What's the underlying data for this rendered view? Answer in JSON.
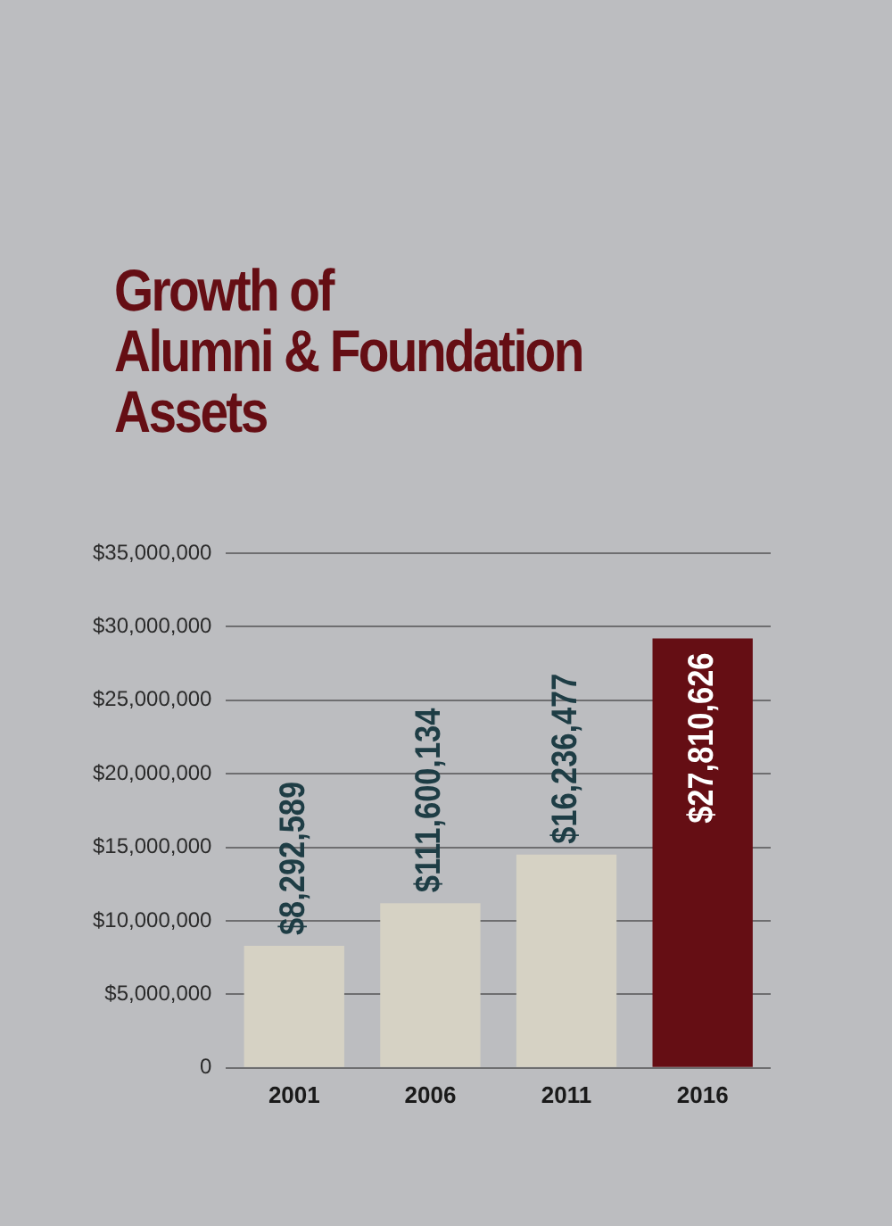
{
  "chart_data": {
    "type": "bar",
    "title": "Growth of\nAlumni & Foundation\nAssets",
    "categories": [
      "2001",
      "2006",
      "2011",
      "2016"
    ],
    "values": [
      8300000,
      11200000,
      14500000,
      29200000
    ],
    "colors": [
      "#d6d2c4",
      "#d6d2c4",
      "#d6d2c4",
      "#650e14"
    ],
    "annotations": [
      {
        "text": "$8,292,589",
        "x": "2001",
        "y": 8300000
      },
      {
        "text": "$111,600,134",
        "x": "2006",
        "y": 11200000
      },
      {
        "text": "$16,236,477",
        "x": "2011",
        "y": 14500000
      },
      {
        "text": "$27,810,626",
        "x": "2016",
        "y": 29200000
      }
    ],
    "ylim": [
      0,
      35000000
    ],
    "yticks": [
      {
        "value": 0,
        "label": "0"
      },
      {
        "value": 5000000,
        "label": "$5,000,000"
      },
      {
        "value": 10000000,
        "label": "$10,000,000"
      },
      {
        "value": 15000000,
        "label": "$15,000,000"
      },
      {
        "value": 20000000,
        "label": "$20,000,000"
      },
      {
        "value": 25000000,
        "label": "$25,000,000"
      },
      {
        "value": 30000000,
        "label": "$30,000,000"
      },
      {
        "value": 35000000,
        "label": "$35,000,000"
      }
    ],
    "grid": "y",
    "legend": false
  }
}
